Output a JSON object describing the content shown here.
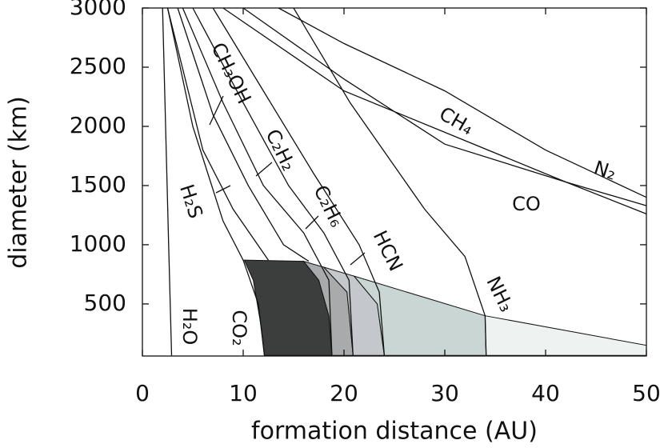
{
  "chart_data": {
    "type": "line",
    "xlabel": "formation distance (AU)",
    "ylabel": "diameter (km)",
    "xlim": [
      0,
      50
    ],
    "xticks": [
      0,
      10,
      20,
      30,
      40,
      50
    ],
    "ylim": [
      60,
      3000
    ],
    "yticks": [
      500,
      1000,
      1500,
      2000,
      2500,
      3000
    ],
    "line_color": "#111111",
    "series": [
      {
        "name": "H₂O",
        "x": [
          2,
          2.3,
          2.6,
          2.9
        ],
        "values": [
          3000,
          2000,
          1000,
          65
        ]
      },
      {
        "name": "CO₂",
        "x": [
          2.5,
          5,
          8,
          10,
          11.5,
          12.1
        ],
        "values": [
          3000,
          2000,
          1200,
          870,
          500,
          65
        ]
      },
      {
        "name": "H₂S",
        "x": [
          2.5,
          6,
          9,
          12.5
        ],
        "values": [
          3000,
          1800,
          1300,
          870
        ]
      },
      {
        "name": "CH₃OH",
        "x": [
          3.5,
          7,
          10.5,
          14,
          16.5
        ],
        "values": [
          3000,
          2100,
          1500,
          1000,
          860
        ]
      },
      {
        "name": "C₂H₂",
        "x": [
          4,
          8,
          12,
          16,
          18.5,
          18.8
        ],
        "values": [
          3000,
          2200,
          1500,
          1100,
          700,
          65
        ]
      },
      {
        "name": "C₂H₆",
        "x": [
          5,
          10,
          14.5,
          18,
          20.5,
          20.9
        ],
        "values": [
          3000,
          2200,
          1500,
          1100,
          700,
          65
        ]
      },
      {
        "name": "HCN",
        "x": [
          7,
          12,
          17,
          21.5,
          23.5,
          24
        ],
        "values": [
          3000,
          2300,
          1600,
          1000,
          600,
          65
        ]
      },
      {
        "name": "NH₃",
        "x": [
          15,
          20.6,
          28,
          32,
          34,
          34.1
        ],
        "values": [
          3000,
          2200,
          1300,
          900,
          400,
          65
        ]
      },
      {
        "name": "CH₄",
        "x": [
          13.5,
          20,
          30,
          40,
          50
        ],
        "values": [
          3000,
          2700,
          2300,
          1800,
          1400
        ]
      },
      {
        "name": "N₂",
        "x": [
          8,
          20,
          30,
          42,
          50
        ],
        "values": [
          3000,
          2300,
          1950,
          1530,
          1260
        ]
      },
      {
        "name": "CO",
        "x": [
          10,
          20,
          30,
          42,
          50
        ],
        "values": [
          3000,
          2400,
          1850,
          1530,
          1330
        ]
      }
    ],
    "regions": [
      {
        "color": "#3b3e3d",
        "x": [
          10.1,
          16,
          17.5,
          18.5,
          18.8,
          12.1,
          11.8,
          11
        ],
        "values": [
          870,
          860,
          700,
          400,
          65,
          65,
          300,
          700
        ]
      },
      {
        "color": "#a9aaac",
        "x": [
          16,
          18,
          20.3,
          20.9,
          18.8,
          18.5,
          17.5
        ],
        "values": [
          860,
          810,
          600,
          65,
          65,
          400,
          700
        ]
      },
      {
        "color": "#c4c8cc",
        "x": [
          18,
          21,
          23.3,
          24,
          20.9,
          20.3
        ],
        "values": [
          810,
          735,
          500,
          65,
          65,
          600
        ]
      },
      {
        "color": "#c9d6d3",
        "x": [
          21,
          34,
          34.1,
          24,
          23.3
        ],
        "values": [
          735,
          400,
          65,
          65,
          500
        ]
      },
      {
        "color": "#eef2f1",
        "x": [
          34,
          50,
          50,
          34.1
        ],
        "values": [
          400,
          150,
          65,
          65
        ]
      }
    ]
  }
}
